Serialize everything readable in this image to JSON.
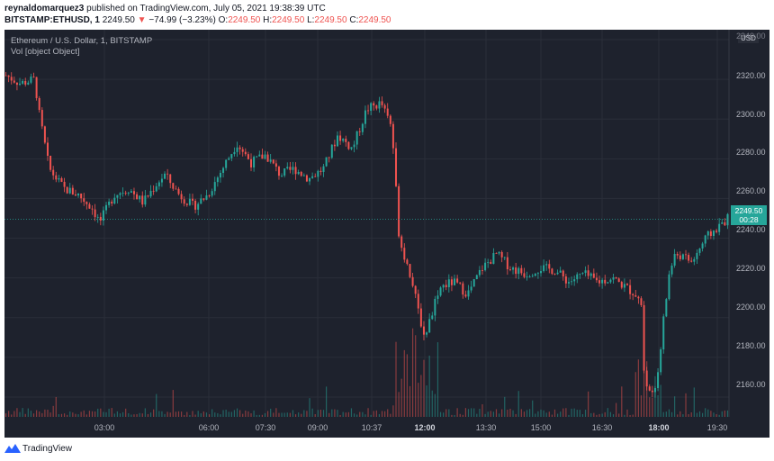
{
  "header": {
    "author": "reynaldomarquez3",
    "published_text": " published on TradingView.com, July 05, 2021 19:38:39 UTC",
    "symbol": "BITSTAMP:ETHUSD, 1",
    "last_price": "2249.50",
    "change_arrow": "▼",
    "change": "−74.99 (−3.23%)",
    "o_label": "O:",
    "o_value": "2249.50",
    "h_label": "H:",
    "h_value": "2249.50",
    "l_label": "L:",
    "l_value": "2249.50",
    "c_label": "C:",
    "c_value": "2249.50"
  },
  "legend": {
    "title": "Ethereum / U.S. Dollar, 1, BITSTAMP",
    "volume": "Vol [object Object]"
  },
  "price_axis": {
    "currency": "USD",
    "top_partial": "2340.00",
    "ticks": [
      "2320.00",
      "2300.00",
      "2280.00",
      "2260.00",
      "2240.00",
      "2220.00",
      "2200.00",
      "2180.00",
      "2160.00"
    ],
    "current_price": "2249.50",
    "countdown": "00:28"
  },
  "time_axis": {
    "labels": [
      "03:00",
      "06:00",
      "07:30",
      "09:00",
      "10:37",
      "12:00",
      "13:30",
      "15:00",
      "16:30",
      "18:00",
      "19:30"
    ],
    "bold": [
      "12:00",
      "18:00"
    ]
  },
  "footer": {
    "brand": "TradingView"
  },
  "colors": {
    "up": "#26a69a",
    "down": "#ef5350",
    "background": "#1e222d"
  },
  "chart_data": {
    "type": "candlestick",
    "series": "ETHUSD 1-minute",
    "y_range": [
      2150,
      2345
    ],
    "last": 2249.5,
    "close_path": [
      [
        0,
        2322
      ],
      [
        0.02,
        2318
      ],
      [
        0.04,
        2320
      ],
      [
        0.045,
        2305
      ],
      [
        0.06,
        2275
      ],
      [
        0.08,
        2265
      ],
      [
        0.1,
        2262
      ],
      [
        0.12,
        2255
      ],
      [
        0.13,
        2248
      ],
      [
        0.15,
        2262
      ],
      [
        0.17,
        2265
      ],
      [
        0.19,
        2258
      ],
      [
        0.21,
        2268
      ],
      [
        0.22,
        2272
      ],
      [
        0.24,
        2262
      ],
      [
        0.26,
        2256
      ],
      [
        0.28,
        2262
      ],
      [
        0.3,
        2275
      ],
      [
        0.32,
        2288
      ],
      [
        0.34,
        2278
      ],
      [
        0.36,
        2282
      ],
      [
        0.38,
        2272
      ],
      [
        0.4,
        2275
      ],
      [
        0.42,
        2270
      ],
      [
        0.44,
        2275
      ],
      [
        0.46,
        2292
      ],
      [
        0.48,
        2285
      ],
      [
        0.5,
        2305
      ],
      [
        0.52,
        2308
      ],
      [
        0.535,
        2295
      ],
      [
        0.545,
        2240
      ],
      [
        0.56,
        2222
      ],
      [
        0.58,
        2190
      ],
      [
        0.6,
        2215
      ],
      [
        0.62,
        2218
      ],
      [
        0.64,
        2212
      ],
      [
        0.66,
        2225
      ],
      [
        0.68,
        2232
      ],
      [
        0.7,
        2225
      ],
      [
        0.72,
        2222
      ],
      [
        0.74,
        2225
      ],
      [
        0.76,
        2224
      ],
      [
        0.78,
        2218
      ],
      [
        0.8,
        2222
      ],
      [
        0.82,
        2218
      ],
      [
        0.84,
        2220
      ],
      [
        0.86,
        2215
      ],
      [
        0.88,
        2210
      ],
      [
        0.885,
        2165
      ],
      [
        0.9,
        2162
      ],
      [
        0.91,
        2195
      ],
      [
        0.92,
        2225
      ],
      [
        0.93,
        2232
      ],
      [
        0.95,
        2228
      ],
      [
        0.97,
        2240
      ],
      [
        1.0,
        2250
      ]
    ]
  }
}
